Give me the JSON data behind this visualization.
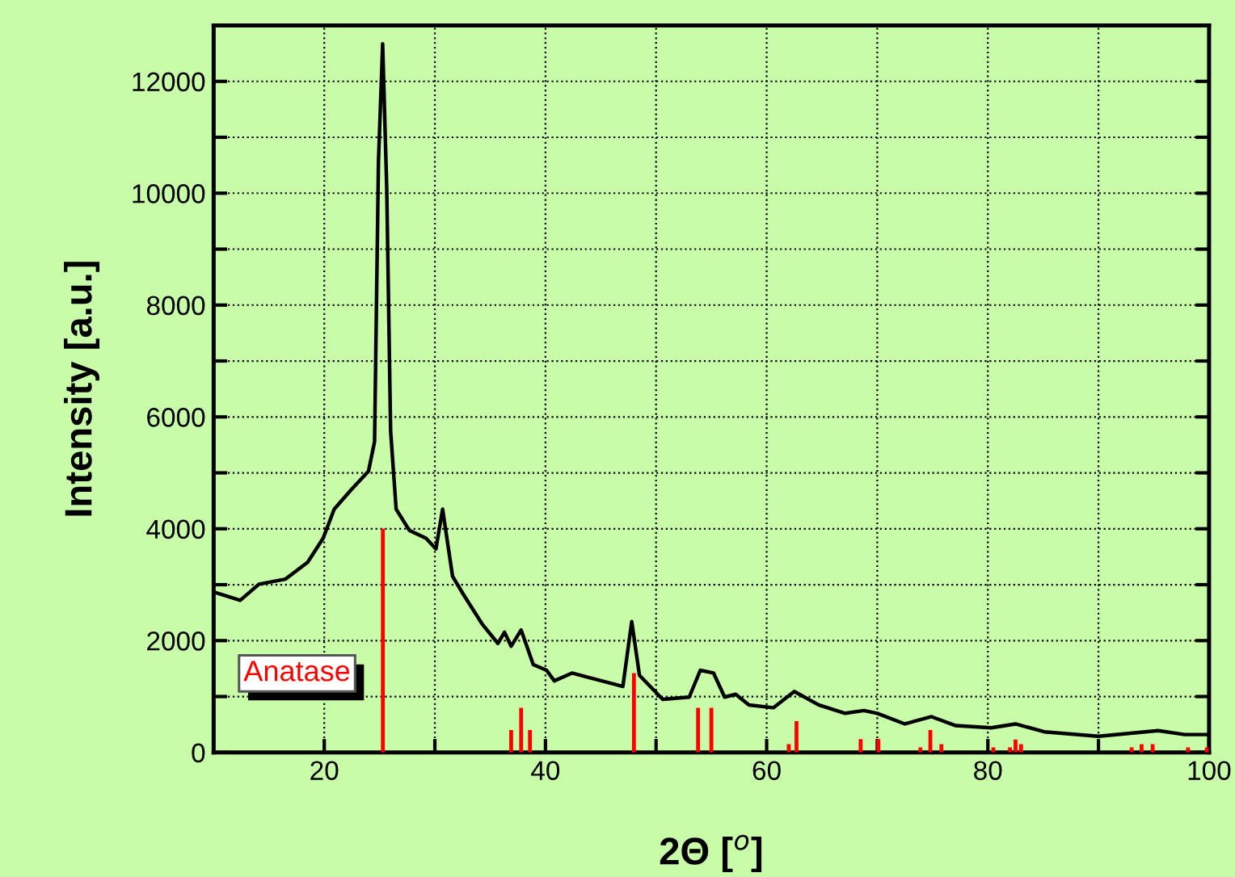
{
  "chart_data": {
    "type": "line",
    "xlabel": "2Θ [$^{o}$]",
    "ylabel": "Intensity [a.u.]",
    "xlim": [
      10,
      100
    ],
    "ylim": [
      0,
      13000
    ],
    "xticks": [
      20,
      {
        "value": 30,
        "label": null
      },
      40,
      {
        "value": 50,
        "label": null
      },
      60,
      {
        "value": 70,
        "label": null
      },
      80,
      {
        "value": 90,
        "label": null
      },
      100
    ],
    "yticks": [
      0,
      {
        "value": 1000,
        "label": null
      },
      2000,
      {
        "value": 3000,
        "label": null
      },
      4000,
      {
        "value": 5000,
        "label": null
      },
      6000,
      {
        "value": 7000,
        "label": null
      },
      8000,
      {
        "value": 9000,
        "label": null
      },
      10000,
      {
        "value": 11000,
        "label": null
      },
      12000
    ],
    "grid": true,
    "legend": "bottom left",
    "marker": "none",
    "line_style": "solid",
    "series": [
      {
        "color": "#000000",
        "x": [
          10.0,
          12.4,
          14.1,
          16.5,
          18.5,
          19.9,
          20.9,
          22.4,
          24.0,
          24.55,
          24.9,
          25.28,
          25.65,
          26.0,
          26.5,
          27.7,
          29.2,
          30.1,
          30.7,
          31.6,
          32.6,
          34.3,
          35.7,
          36.3,
          36.9,
          37.8,
          38.9,
          40.1,
          40.8,
          42.4,
          44.1,
          47.0,
          47.8,
          48.5,
          50.6,
          53.0,
          54.0,
          55.2,
          56.2,
          57.2,
          58.4,
          60.6,
          62.5,
          64.7,
          67.1,
          68.8,
          70.0,
          72.5,
          74.9,
          77.1,
          80.3,
          82.5,
          85.1,
          90.0,
          95.4,
          97.8,
          99.7
        ],
        "values": [
          2870,
          2720,
          3010,
          3100,
          3400,
          3830,
          4350,
          4690,
          5030,
          5560,
          10560,
          12670,
          10080,
          5750,
          4350,
          3970,
          3830,
          3640,
          4350,
          3150,
          2820,
          2290,
          1950,
          2150,
          1900,
          2190,
          1570,
          1470,
          1280,
          1420,
          1330,
          1180,
          2340,
          1380,
          950,
          990,
          1470,
          1420,
          990,
          1040,
          850,
          800,
          1090,
          850,
          700,
          750,
          700,
          510,
          640,
          480,
          440,
          510,
          370,
          290,
          390,
          320,
          320
        ]
      },
      {
        "type": "bar",
        "name": "Anatase",
        "color": "#ff0000",
        "x": [
          25.3,
          36.9,
          37.8,
          38.6,
          48.0,
          53.8,
          55.0,
          62.0,
          62.7,
          68.5,
          70.1,
          73.9,
          74.8,
          75.8,
          80.5,
          82.0,
          82.5,
          83.0,
          93.0,
          93.9,
          94.9,
          98.1,
          99.8
        ],
        "values": [
          4000,
          400,
          800,
          400,
          1420,
          800,
          800,
          150,
          560,
          240,
          240,
          90,
          400,
          150,
          90,
          90,
          230,
          150,
          90,
          150,
          150,
          90,
          90
        ]
      }
    ]
  }
}
